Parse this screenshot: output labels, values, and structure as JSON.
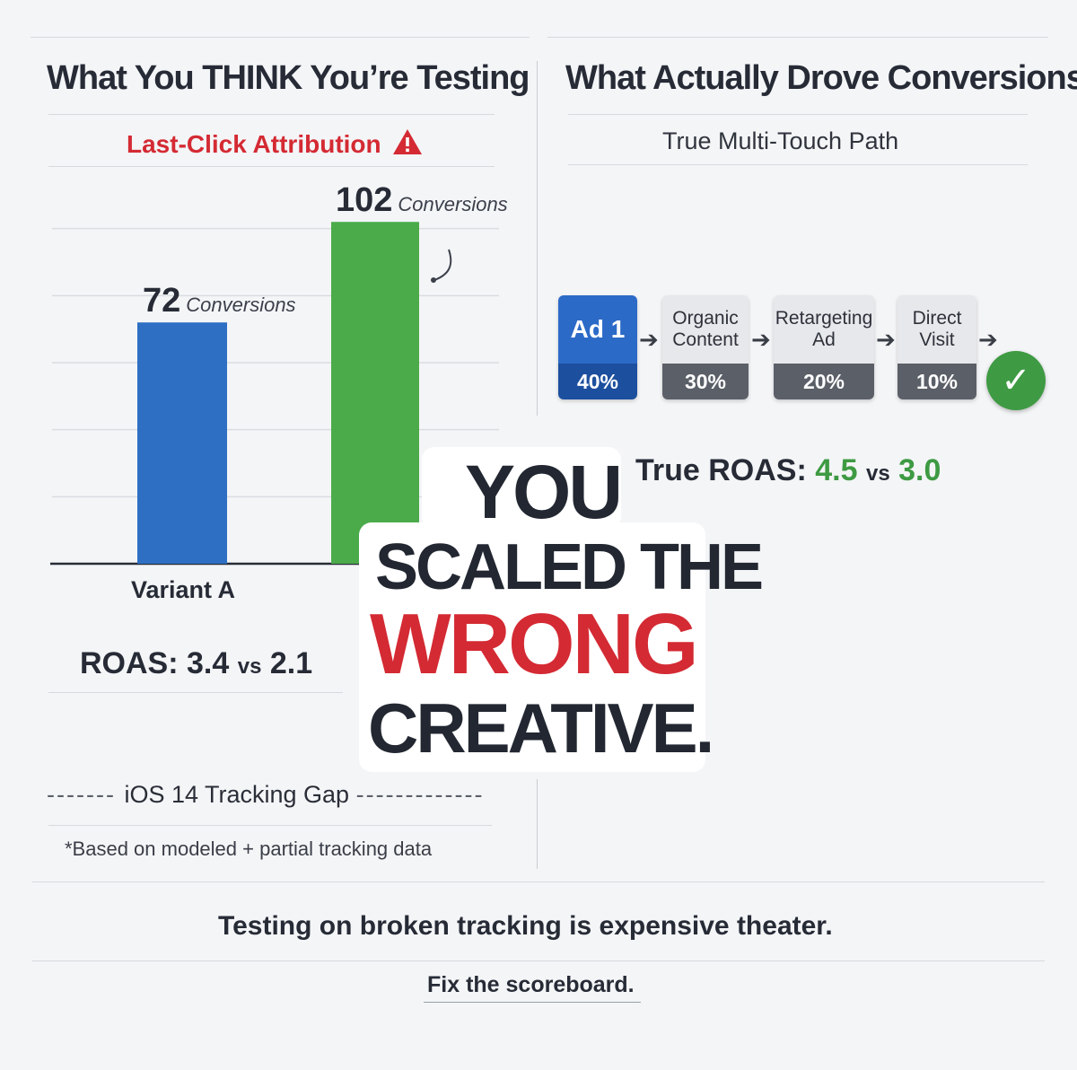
{
  "left_panel": {
    "title": "What You THINK You’re Testing",
    "subtitle": "Last-Click Attribution",
    "warning_icon": "warning-triangle-icon",
    "roas_label": "ROAS:",
    "roas_a": "3.4",
    "roas_vs": "vs",
    "roas_b": "2.1"
  },
  "right_panel": {
    "title": "What Actually Drove Conversions",
    "subtitle": "True Multi-Touch Path",
    "roas_label": "True ROAS:",
    "roas_a": "4.5",
    "roas_vs": "vs",
    "roas_b": "3.0",
    "complete_icon": "check-circle-icon"
  },
  "path_steps": [
    {
      "label": "Ad 1",
      "share": "40%"
    },
    {
      "label": "Organic Content",
      "share": "30%"
    },
    {
      "label": "Retargeting Ad",
      "share": "20%"
    },
    {
      "label": "Direct Visit",
      "share": "10%"
    }
  ],
  "headline": {
    "line1": "YOU",
    "line2": "SCALED THE",
    "line3": "WRONG",
    "line4": "CREATIVE."
  },
  "footer": {
    "gap_label": "iOS 14 Tracking Gap",
    "note": "*Based on modeled + partial tracking data",
    "tagline": "Testing on broken tracking is expensive theater.",
    "cta": "Fix the scoreboard."
  },
  "colors": {
    "variant_a_bar": "#2e6fc4",
    "variant_b_bar": "#4bab4b",
    "accent_red": "#d42a33",
    "accent_green": "#3e9a43"
  },
  "chart_data": {
    "type": "bar",
    "title": "",
    "categories": [
      "Variant A",
      ""
    ],
    "values": [
      72,
      102
    ],
    "value_unit": "Conversions",
    "ylim": [
      0,
      120
    ],
    "grid": true,
    "bar_colors": [
      "#2e6fc4",
      "#4bab4b"
    ]
  }
}
